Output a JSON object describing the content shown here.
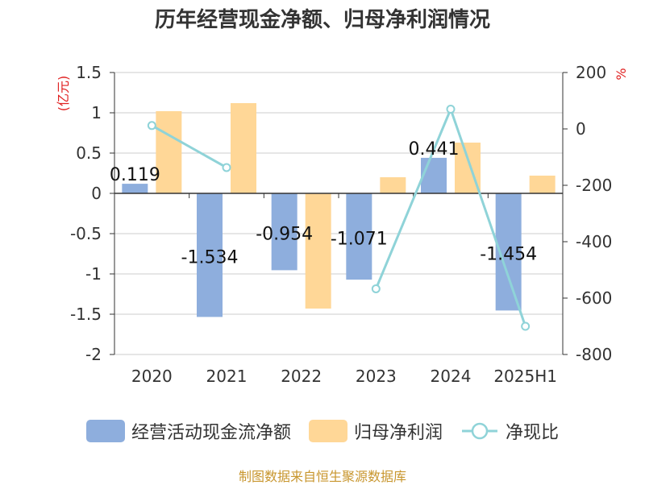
{
  "chart_data": {
    "type": "bar",
    "title": "历年经营现金净额、归母净利润情况",
    "categories": [
      "2020",
      "2021",
      "2022",
      "2023",
      "2024",
      "2025H1"
    ],
    "left_axis": {
      "unit": "(亿元)",
      "ylim": [
        -2,
        1.5
      ],
      "ticks": [
        "1.5",
        "1",
        "0.5",
        "0",
        "-0.5",
        "-1",
        "-1.5",
        "-2"
      ],
      "tick_values": [
        1.5,
        1,
        0.5,
        0,
        -0.5,
        -1,
        -1.5,
        -2
      ]
    },
    "right_axis": {
      "unit": "%",
      "ylim": [
        -800,
        200
      ],
      "ticks": [
        "200",
        "0",
        "-200",
        "-400",
        "-600",
        "-800"
      ],
      "tick_values": [
        200,
        0,
        -200,
        -400,
        -600,
        -800
      ]
    },
    "series": [
      {
        "name": "经营活动现金流净额",
        "type": "bar",
        "axis": "left",
        "color": "#8eaedd",
        "values": [
          0.119,
          -1.534,
          -0.954,
          -1.071,
          0.441,
          -1.454
        ],
        "labels": [
          "0.119",
          "-1.534",
          "-0.954",
          "-1.071",
          "0.441",
          "-1.454"
        ]
      },
      {
        "name": "归母净利润",
        "type": "bar",
        "axis": "left",
        "color": "#ffd797",
        "values": [
          1.02,
          1.12,
          -1.43,
          0.2,
          0.63,
          0.22
        ]
      },
      {
        "name": "净现比",
        "type": "line",
        "axis": "right",
        "color": "#8fd3d8",
        "values": [
          12,
          -137,
          null,
          -567,
          70,
          -700
        ]
      }
    ],
    "grid": true,
    "legend_position": "bottom"
  },
  "source_note": "制图数据来自恒生聚源数据库"
}
